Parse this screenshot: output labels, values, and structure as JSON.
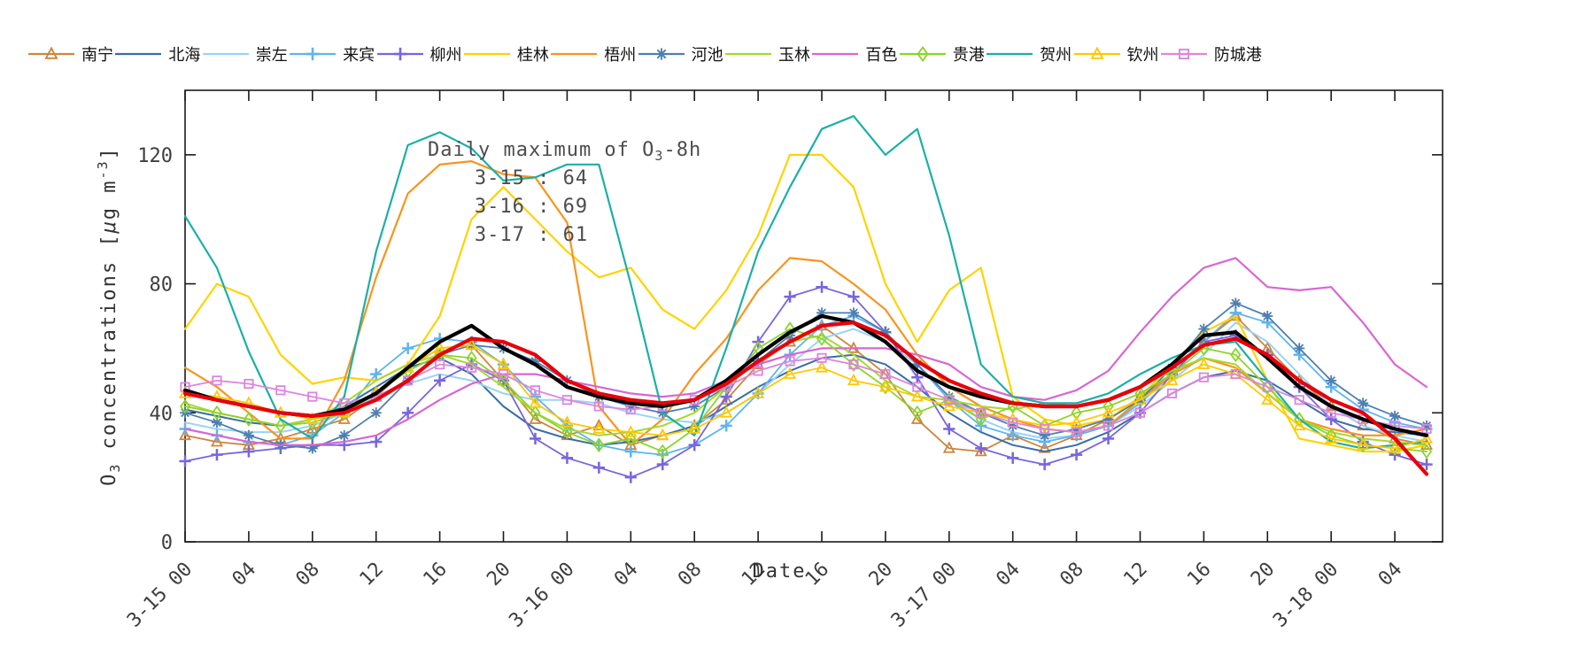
{
  "legend": {
    "items": [
      {
        "label": "南宁",
        "color": "#CD853F",
        "marker": "triangle"
      },
      {
        "label": "北海",
        "color": "#3A6EA5",
        "marker": "none"
      },
      {
        "label": "崇左",
        "color": "#9AD4F5",
        "marker": "none"
      },
      {
        "label": "来宾",
        "color": "#5FB4F0",
        "marker": "plus"
      },
      {
        "label": "柳州",
        "color": "#7766DD",
        "marker": "plus"
      },
      {
        "label": "桂林",
        "color": "#FFD300",
        "marker": "none"
      },
      {
        "label": "梧州",
        "color": "#F7941E",
        "marker": "none"
      },
      {
        "label": "河池",
        "color": "#4D7FB0",
        "marker": "asterisk"
      },
      {
        "label": "玉林",
        "color": "#A8D82E",
        "marker": "none"
      },
      {
        "label": "百色",
        "color": "#D966D1",
        "marker": "none"
      },
      {
        "label": "贵港",
        "color": "#8CD42A",
        "marker": "diamond"
      },
      {
        "label": "贺州",
        "color": "#1CAFA6",
        "marker": "none"
      },
      {
        "label": "钦州",
        "color": "#FFC800",
        "marker": "triangle"
      },
      {
        "label": "防城港",
        "color": "#DD85DE",
        "marker": "square"
      }
    ]
  },
  "chart_data": {
    "type": "line",
    "xlabel": "Date",
    "ylabel_parts": {
      "pre": "O",
      "sub": "3",
      "mid": " concentrations [",
      "mu": "μ",
      "mid2": "g m",
      "sup": "-3",
      "post": "]"
    },
    "ylim": [
      0,
      140
    ],
    "yticks": [
      0,
      40,
      80,
      120
    ],
    "xlim": [
      0,
      79
    ],
    "x_start": 0,
    "x_step": 2,
    "x_tick_hours": [
      0,
      4,
      8,
      12,
      16,
      20,
      24,
      28,
      32,
      36,
      40,
      44,
      48,
      52,
      56,
      60,
      64,
      68,
      72,
      76
    ],
    "x_tick_labels": [
      "3-15 00",
      "04",
      "08",
      "12",
      "16",
      "20",
      "3-16 00",
      "04",
      "08",
      "12",
      "16",
      "20",
      "3-17 00",
      "04",
      "08",
      "12",
      "16",
      "20",
      "3-18 00",
      "04"
    ],
    "annotation": {
      "title_parts": {
        "pre": "Daily maximum of O",
        "sub": "3",
        "post": "-8h"
      },
      "entries": [
        "3-15 : 64",
        "3-16 : 69",
        "3-17 : 61"
      ]
    },
    "series": [
      {
        "name": "南宁",
        "color": "#CD853F",
        "marker": "triangle",
        "width": 1.8,
        "values": [
          33,
          31,
          30,
          32,
          35,
          38,
          45,
          54,
          60,
          61,
          50,
          38,
          33,
          36,
          30,
          33,
          36,
          44,
          55,
          62,
          67,
          60,
          52,
          38,
          29,
          28,
          33,
          29,
          33,
          38,
          45,
          52,
          62,
          70,
          60,
          50,
          42,
          36,
          32,
          30
        ]
      },
      {
        "name": "北海",
        "color": "#3A6EA5",
        "marker": "none",
        "width": 2,
        "values": [
          41,
          39,
          37,
          36,
          38,
          42,
          48,
          54,
          57,
          52,
          42,
          35,
          32,
          30,
          31,
          33,
          36,
          42,
          48,
          53,
          57,
          58,
          55,
          48,
          40,
          34,
          30,
          28,
          30,
          34,
          40,
          46,
          51,
          53,
          50,
          44,
          38,
          35,
          34,
          33
        ]
      },
      {
        "name": "崇左",
        "color": "#9AD4F5",
        "marker": "none",
        "width": 2,
        "values": [
          37,
          35,
          34,
          34,
          36,
          40,
          45,
          49,
          52,
          50,
          46,
          44,
          44,
          43,
          40,
          38,
          37,
          40,
          46,
          55,
          63,
          66,
          62,
          55,
          45,
          38,
          34,
          32,
          33,
          36,
          42,
          50,
          58,
          68,
          62,
          52,
          42,
          36,
          33,
          31
        ]
      },
      {
        "name": "来宾",
        "color": "#5FB4F0",
        "marker": "plus",
        "width": 1.8,
        "values": [
          35,
          33,
          31,
          30,
          33,
          40,
          52,
          60,
          63,
          62,
          55,
          45,
          36,
          30,
          28,
          27,
          30,
          36,
          46,
          58,
          67,
          70,
          65,
          55,
          44,
          36,
          33,
          31,
          33,
          36,
          43,
          52,
          62,
          71,
          68,
          58,
          48,
          41,
          37,
          35
        ]
      },
      {
        "name": "柳州",
        "color": "#7766DD",
        "marker": "plus",
        "width": 1.8,
        "values": [
          25,
          27,
          28,
          29,
          30,
          30,
          31,
          40,
          50,
          55,
          50,
          32,
          26,
          23,
          20,
          24,
          30,
          45,
          62,
          76,
          79,
          76,
          65,
          51,
          35,
          29,
          26,
          24,
          27,
          32,
          40,
          52,
          62,
          64,
          58,
          48,
          38,
          31,
          27,
          24
        ]
      },
      {
        "name": "桂林",
        "color": "#FFD300",
        "marker": "none",
        "width": 2.2,
        "values": [
          66,
          80,
          76,
          58,
          49,
          51,
          50,
          55,
          70,
          100,
          110,
          100,
          90,
          82,
          85,
          72,
          66,
          78,
          95,
          120,
          120,
          110,
          80,
          62,
          78,
          85,
          45,
          38,
          36,
          38,
          45,
          55,
          65,
          70,
          50,
          32,
          30,
          28,
          28,
          30
        ]
      },
      {
        "name": "梧州",
        "color": "#F7941E",
        "marker": "none",
        "width": 2.2,
        "values": [
          54,
          48,
          40,
          32,
          32,
          50,
          82,
          108,
          117,
          118,
          114,
          113,
          99,
          42,
          30,
          38,
          52,
          63,
          78,
          88,
          87,
          80,
          72,
          58,
          48,
          42,
          38,
          35,
          34,
          36,
          44,
          52,
          57,
          54,
          46,
          38,
          35,
          33,
          33,
          35
        ]
      },
      {
        "name": "河池",
        "color": "#4D7FB0",
        "marker": "asterisk",
        "width": 1.8,
        "values": [
          40,
          37,
          33,
          30,
          29,
          33,
          40,
          50,
          58,
          61,
          60,
          56,
          50,
          45,
          42,
          40,
          42,
          48,
          56,
          64,
          71,
          71,
          65,
          55,
          45,
          40,
          36,
          33,
          35,
          38,
          44,
          54,
          66,
          74,
          70,
          60,
          50,
          43,
          39,
          36
        ]
      },
      {
        "name": "玉林",
        "color": "#A8D82E",
        "marker": "none",
        "width": 2,
        "values": [
          43,
          40,
          38,
          36,
          38,
          43,
          50,
          55,
          58,
          55,
          48,
          40,
          35,
          33,
          34,
          36,
          40,
          48,
          56,
          62,
          64,
          58,
          50,
          45,
          44,
          42,
          41,
          43,
          42,
          44,
          48,
          53,
          57,
          55,
          46,
          38,
          34,
          32,
          31,
          30
        ]
      },
      {
        "name": "百色",
        "color": "#D966D1",
        "marker": "none",
        "width": 2.2,
        "values": [
          35,
          33,
          31,
          30,
          30,
          31,
          33,
          38,
          44,
          49,
          52,
          52,
          50,
          48,
          46,
          45,
          46,
          50,
          55,
          58,
          60,
          60,
          60,
          58,
          55,
          48,
          45,
          44,
          47,
          53,
          65,
          76,
          85,
          88,
          79,
          78,
          79,
          68,
          55,
          48
        ]
      },
      {
        "name": "贵港",
        "color": "#8CD42A",
        "marker": "diamond",
        "width": 1.8,
        "values": [
          42,
          40,
          38,
          36,
          37,
          40,
          46,
          53,
          58,
          57,
          50,
          40,
          34,
          30,
          32,
          28,
          35,
          48,
          60,
          66,
          63,
          55,
          48,
          40,
          44,
          38,
          42,
          36,
          40,
          42,
          46,
          52,
          60,
          58,
          48,
          38,
          33,
          30,
          29,
          28
        ]
      },
      {
        "name": "贺州",
        "color": "#1CAFA6",
        "marker": "none",
        "width": 2.2,
        "values": [
          101,
          85,
          59,
          38,
          32,
          45,
          90,
          123,
          127,
          122,
          112,
          113,
          117,
          117,
          80,
          40,
          33,
          60,
          90,
          110,
          128,
          132,
          120,
          128,
          95,
          55,
          45,
          43,
          43,
          46,
          52,
          57,
          61,
          62,
          50,
          38,
          31,
          29,
          30,
          31
        ]
      },
      {
        "name": "钦州",
        "color": "#FFC800",
        "marker": "triangle",
        "width": 1.8,
        "values": [
          46,
          45,
          43,
          40,
          38,
          40,
          46,
          54,
          60,
          61,
          55,
          43,
          37,
          35,
          34,
          33,
          35,
          40,
          46,
          52,
          54,
          50,
          48,
          45,
          42,
          40,
          38,
          36,
          37,
          40,
          44,
          50,
          55,
          52,
          44,
          36,
          32,
          30,
          29,
          32
        ]
      },
      {
        "name": "防城港",
        "color": "#DD85DE",
        "marker": "square",
        "width": 1.8,
        "values": [
          48,
          50,
          49,
          47,
          45,
          43,
          45,
          50,
          55,
          54,
          52,
          47,
          44,
          42,
          41,
          42,
          44,
          48,
          53,
          56,
          57,
          55,
          52,
          48,
          44,
          40,
          37,
          35,
          34,
          36,
          40,
          46,
          51,
          52,
          48,
          44,
          40,
          38,
          36,
          35
        ]
      },
      {
        "name": "black-thick-line",
        "color": "#000000",
        "marker": "none",
        "width": 4.2,
        "values": [
          47,
          44,
          42,
          40,
          39,
          41,
          46,
          54,
          62,
          67,
          60,
          55,
          48,
          45,
          43,
          42,
          44,
          50,
          58,
          65,
          70,
          68,
          62,
          53,
          48,
          45,
          43,
          42,
          42,
          44,
          48,
          55,
          64,
          65,
          57,
          48,
          42,
          38,
          35,
          33
        ]
      },
      {
        "name": "red-thick-line",
        "color": "#E8000B",
        "marker": "none",
        "width": 4.2,
        "values": [
          46,
          44,
          42,
          40,
          39,
          40,
          44,
          50,
          58,
          63,
          62,
          58,
          50,
          46,
          44,
          43,
          44,
          49,
          56,
          62,
          67,
          68,
          64,
          56,
          50,
          46,
          43,
          42,
          42,
          44,
          48,
          54,
          61,
          63,
          58,
          50,
          44,
          40,
          32,
          21
        ]
      }
    ]
  }
}
